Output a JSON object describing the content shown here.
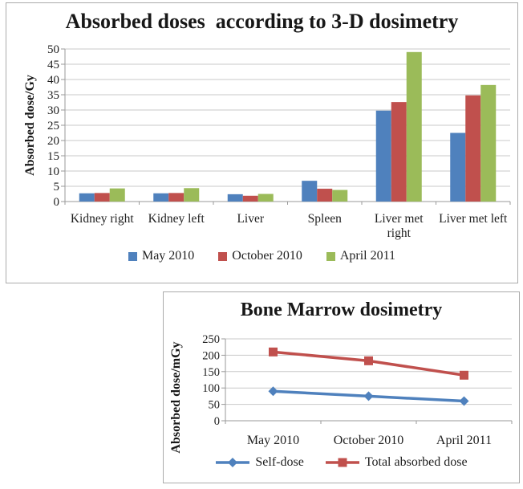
{
  "colors": {
    "blue": "#4F81BD",
    "red": "#C0504D",
    "green": "#9BBB59",
    "gridline": "#C9C9C9",
    "axis": "#9A9A9A",
    "border": "#ABABAB",
    "text": "#1f1f1f"
  },
  "chart_data": [
    {
      "type": "bar",
      "title": "Absorbed doses  according to 3-D dosimetry",
      "xlabel": "",
      "ylabel": "Absorbed dose/Gy",
      "ylim": [
        0,
        50
      ],
      "ytick_step": 5,
      "grid": true,
      "legend_position": "bottom",
      "categories": [
        "Kidney right",
        "Kidney left",
        "Liver",
        "Spleen",
        "Liver met right",
        "Liver met left"
      ],
      "category_lines": [
        [
          "Kidney right"
        ],
        [
          "Kidney left"
        ],
        [
          "Liver"
        ],
        [
          "Spleen"
        ],
        [
          "Liver met",
          "right"
        ],
        [
          "Liver met left"
        ]
      ],
      "series": [
        {
          "name": "May 2010",
          "color_key": "blue",
          "values": [
            2.7,
            2.7,
            2.4,
            6.8,
            29.8,
            22.5
          ]
        },
        {
          "name": "October 2010",
          "color_key": "red",
          "values": [
            2.8,
            2.8,
            1.9,
            4.2,
            32.6,
            34.8
          ]
        },
        {
          "name": "April 2011",
          "color_key": "green",
          "values": [
            4.3,
            4.4,
            2.5,
            3.8,
            49.0,
            38.2
          ]
        }
      ]
    },
    {
      "type": "line",
      "title": "Bone Marrow dosimetry",
      "xlabel": "",
      "ylabel": "Absorbed dose/mGy",
      "ylim": [
        0,
        250
      ],
      "ytick_step": 50,
      "grid": true,
      "legend_position": "bottom",
      "categories": [
        "May 2010",
        "October 2010",
        "April 2011"
      ],
      "category_lines": [
        [
          "May 2010"
        ],
        [
          "October 2010"
        ],
        [
          "April 2011"
        ]
      ],
      "series": [
        {
          "name": "Self-dose",
          "color_key": "blue",
          "marker": "diamond",
          "values": [
            90,
            75,
            60
          ]
        },
        {
          "name": "Total absorbed dose",
          "color_key": "red",
          "marker": "square",
          "values": [
            210,
            183,
            139
          ]
        }
      ]
    }
  ]
}
